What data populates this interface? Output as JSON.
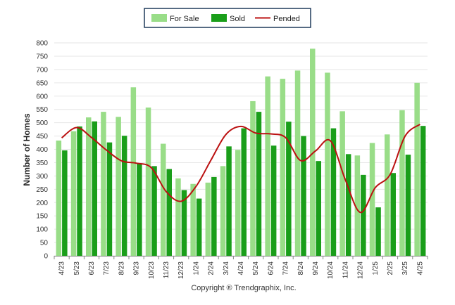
{
  "chart_data": {
    "type": "bar",
    "ylabel": "Number of Homes",
    "ylim": [
      0,
      800
    ],
    "yticks": [
      0,
      50,
      100,
      150,
      200,
      250,
      300,
      350,
      400,
      450,
      500,
      550,
      600,
      650,
      700,
      750,
      800
    ],
    "grid": true,
    "legend_position": "top-center",
    "categories": [
      "4/23",
      "5/23",
      "6/23",
      "7/23",
      "8/23",
      "9/23",
      "10/23",
      "11/23",
      "12/23",
      "1/24",
      "2/24",
      "3/24",
      "4/24",
      "5/24",
      "6/24",
      "7/24",
      "8/24",
      "9/24",
      "10/24",
      "11/24",
      "12/24",
      "1/25",
      "2/25",
      "3/25",
      "4/25"
    ],
    "series": [
      {
        "name": "For Sale",
        "kind": "bar",
        "color": "#99dd88",
        "values": [
          433,
          468,
          520,
          541,
          522,
          633,
          557,
          421,
          291,
          270,
          275,
          337,
          398,
          581,
          674,
          665,
          696,
          778,
          688,
          543,
          377,
          424,
          456,
          547,
          650
        ]
      },
      {
        "name": "Sold",
        "kind": "bar",
        "color": "#1a9e1a",
        "values": [
          396,
          486,
          505,
          426,
          451,
          346,
          337,
          326,
          247,
          215,
          296,
          411,
          479,
          541,
          414,
          504,
          450,
          356,
          479,
          382,
          304,
          182,
          311,
          380,
          488
        ]
      },
      {
        "name": "Pended",
        "kind": "line",
        "color": "#bb1111",
        "values": [
          443,
          482,
          444,
          397,
          357,
          348,
          331,
          241,
          205,
          261,
          360,
          456,
          486,
          461,
          458,
          444,
          358,
          394,
          432,
          285,
          163,
          256,
          306,
          450,
          494
        ]
      }
    ],
    "credit": "Copyright ® Trendgraphix, Inc."
  }
}
